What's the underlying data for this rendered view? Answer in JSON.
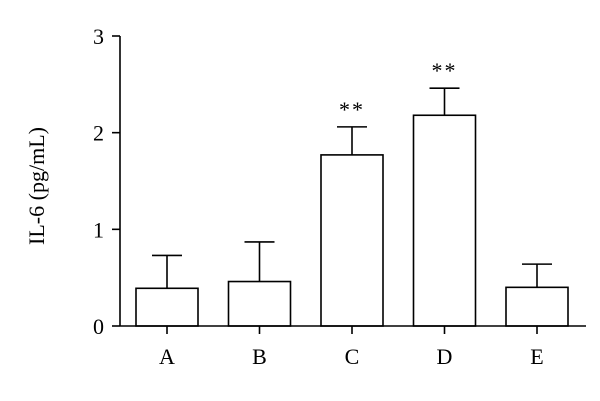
{
  "chart_data": {
    "type": "bar",
    "categories": [
      "A",
      "B",
      "C",
      "D",
      "E"
    ],
    "values": [
      0.39,
      0.46,
      1.77,
      2.18,
      0.4
    ],
    "error_upper": [
      0.34,
      0.41,
      0.29,
      0.28,
      0.24
    ],
    "annotations": [
      "",
      "",
      "**",
      "**",
      ""
    ],
    "title": "",
    "xlabel": "",
    "ylabel": "IL-6 (pg/mL)",
    "ylim": [
      0,
      3
    ],
    "yticks": [
      "0",
      "1",
      "2",
      "3"
    ],
    "grid": false,
    "bar_fill": "#ffffff",
    "bar_stroke": "#000000"
  }
}
